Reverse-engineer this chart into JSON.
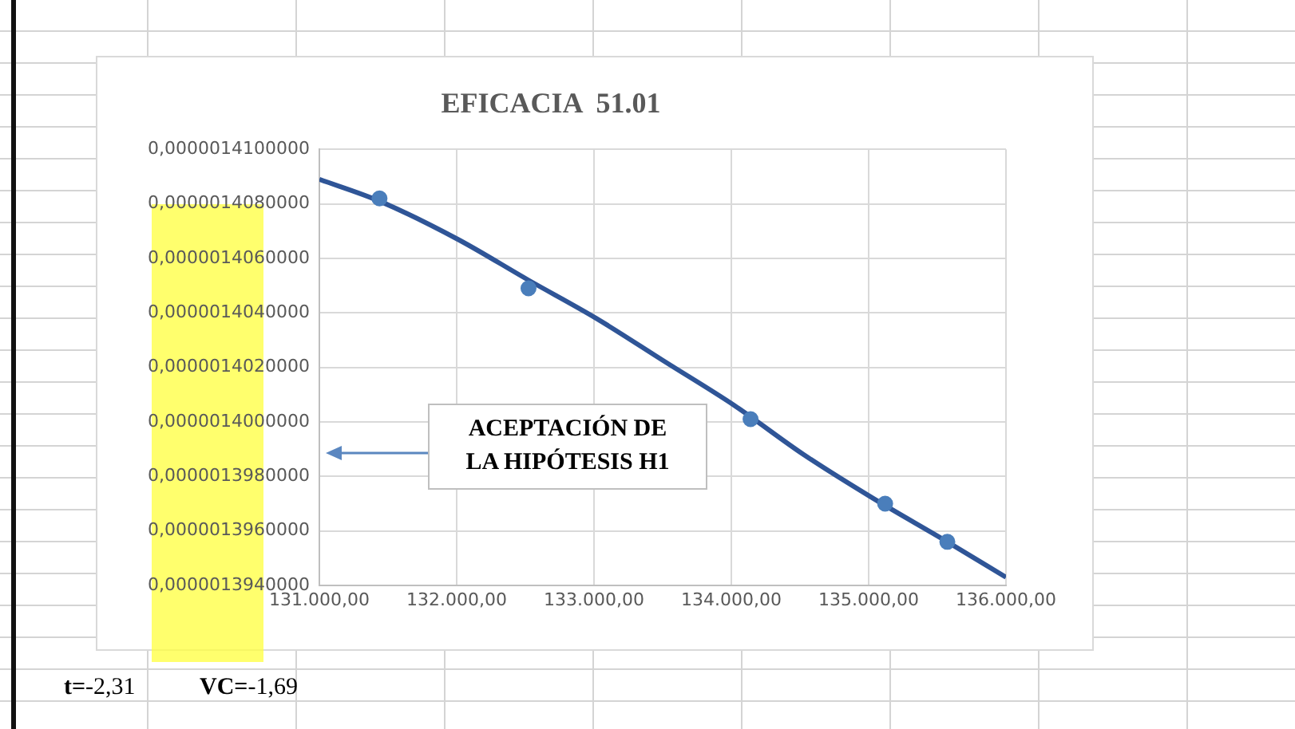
{
  "chart_data": {
    "type": "scatter",
    "title": "EFICACIA  51.01",
    "xlim": [
      131000,
      136000
    ],
    "xticks": [
      {
        "value": 131000,
        "label": "131.000,00"
      },
      {
        "value": 132000,
        "label": "132.000,00"
      },
      {
        "value": 133000,
        "label": "133.000,00"
      },
      {
        "value": 134000,
        "label": "134.000,00"
      },
      {
        "value": 135000,
        "label": "135.000,00"
      },
      {
        "value": 136000,
        "label": "136.000,00"
      }
    ],
    "ylim": [
      1.394e-06,
      1.41e-06
    ],
    "yticks": [
      {
        "value": 1.394e-06,
        "label": "0,0000013940000"
      },
      {
        "value": 1.396e-06,
        "label": "0,0000013960000"
      },
      {
        "value": 1.398e-06,
        "label": "0,0000013980000"
      },
      {
        "value": 1.4e-06,
        "label": "0,0000014000000"
      },
      {
        "value": 1.402e-06,
        "label": "0,0000014020000"
      },
      {
        "value": 1.404e-06,
        "label": "0,0000014040000"
      },
      {
        "value": 1.406e-06,
        "label": "0,0000014060000"
      },
      {
        "value": 1.408e-06,
        "label": "0,0000014080000"
      },
      {
        "value": 1.41e-06,
        "label": "0,0000014100000"
      }
    ],
    "grid": true,
    "series": [
      {
        "type": "scatter",
        "marker": "circle",
        "color": "#4a7ebb",
        "x": [
          131438,
          132523,
          134140,
          135120,
          135573
        ],
        "values": [
          1.4082e-06,
          1.4049e-06,
          1.4001e-06,
          1.397e-06,
          1.3956e-06
        ]
      },
      {
        "type": "line",
        "marker": "none",
        "line_style": "solid",
        "color": "#2f5597",
        "x": [
          131000,
          131438,
          132008,
          132523,
          133016,
          133519,
          134023,
          134527,
          135031,
          135573,
          136000
        ],
        "values": [
          1.4089e-06,
          1.4081e-06,
          1.4067e-06,
          1.4052e-06,
          1.4038e-06,
          1.4022e-06,
          1.4006e-06,
          1.3988e-06,
          1.3972e-06,
          1.3956e-06,
          1.3943e-06
        ]
      }
    ],
    "annotations": [
      "ACEPTACIÓN  DE LA HIPÓTESIS  H1",
      "t=-2,31",
      "VC=-1,69"
    ]
  }
}
